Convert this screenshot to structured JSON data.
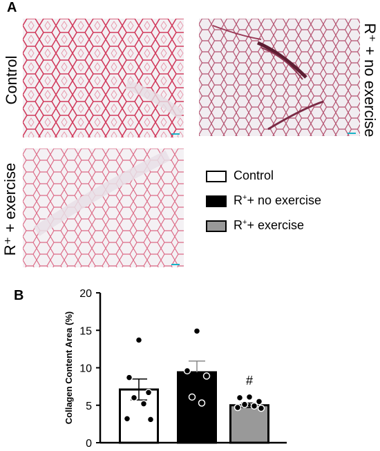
{
  "panel_a": {
    "letter": "A",
    "images": [
      {
        "label": "Control"
      },
      {
        "label": "R⁺ + no exercise"
      },
      {
        "label": "R⁺ + exercise"
      }
    ]
  },
  "panel_b": {
    "letter": "B"
  },
  "legend": {
    "items": [
      {
        "prefix": "Control",
        "sup": "",
        "suffix": "",
        "color": "#ffffff"
      },
      {
        "prefix": "R",
        "sup": "+",
        "suffix": "+ no exercise",
        "color": "#000000"
      },
      {
        "prefix": "R",
        "sup": "+",
        "suffix": "+ exercise",
        "color": "#999999"
      }
    ]
  },
  "chart_data": {
    "type": "bar",
    "ylabel": "Collagen Content  Area (%)",
    "ylim": [
      0,
      20
    ],
    "yticks": [
      "0",
      "5",
      "10",
      "15",
      "20"
    ],
    "categories": [
      "Control",
      "R+ no exercise",
      "R+ exercise"
    ],
    "values": [
      7.1,
      9.4,
      5.0
    ],
    "sem": [
      1.4,
      1.5,
      0.3
    ],
    "colors": [
      "#ffffff",
      "#000000",
      "#999999"
    ],
    "points": [
      [
        13.7,
        8.7,
        6.7,
        6.0,
        5.2,
        3.2,
        3.1
      ],
      [
        14.9,
        9.6,
        8.9,
        6.1,
        5.3
      ],
      [
        6.1,
        6.0,
        5.5,
        5.1,
        4.9,
        4.7,
        4.6
      ]
    ],
    "annotations": [
      {
        "category": "R+ exercise",
        "text": "#"
      }
    ]
  }
}
